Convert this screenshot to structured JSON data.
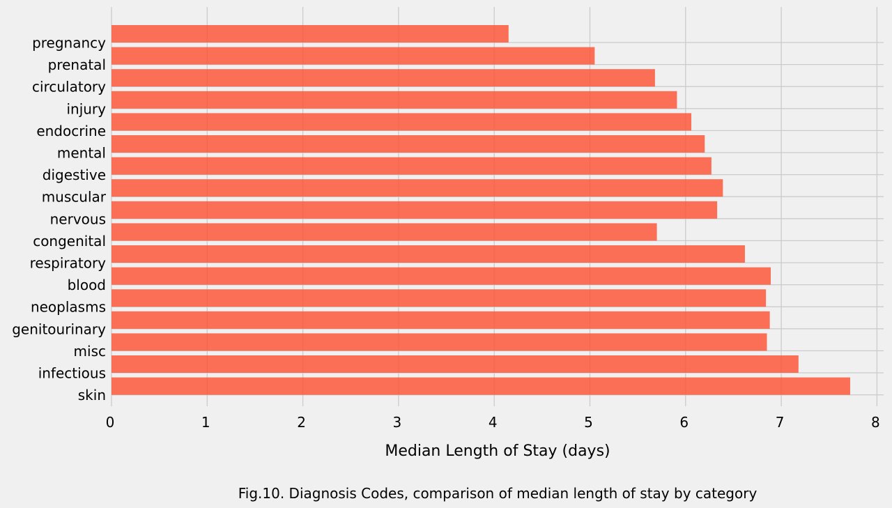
{
  "chart_data": {
    "type": "bar",
    "orientation": "horizontal",
    "categories": [
      "pregnancy",
      "prenatal",
      "circulatory",
      "injury",
      "endocrine",
      "mental",
      "digestive",
      "muscular",
      "nervous",
      "congenital",
      "respiratory",
      "blood",
      "neoplasms",
      "genitourinary",
      "misc",
      "infectious",
      "skin"
    ],
    "values": [
      4.15,
      5.05,
      5.68,
      5.91,
      6.06,
      6.2,
      6.27,
      6.39,
      6.33,
      5.7,
      6.62,
      6.89,
      6.84,
      6.88,
      6.85,
      7.18,
      7.72
    ],
    "xlabel": "Median Length of Stay (days)",
    "ylabel": "",
    "xlim": [
      0,
      8
    ],
    "xticks": [
      0,
      1,
      2,
      3,
      4,
      5,
      6,
      7,
      8
    ],
    "grid": true,
    "caption": "Fig.10. Diagnosis Codes, comparison of median length of stay by category",
    "colors": {
      "bar": "#fc4f30",
      "background": "#f0f0f0",
      "grid": "#cbcbcb"
    }
  }
}
